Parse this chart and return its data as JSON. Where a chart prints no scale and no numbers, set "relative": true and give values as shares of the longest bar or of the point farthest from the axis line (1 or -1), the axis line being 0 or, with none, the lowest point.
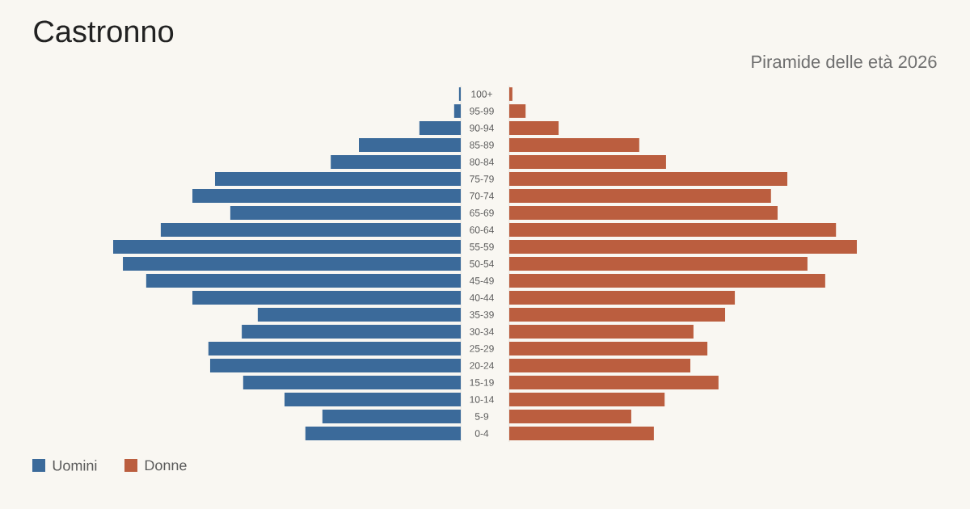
{
  "chart_data": [
    {
      "type": "bar",
      "title": "Castronno",
      "orientation": "horizontal",
      "relative": true,
      "tick_labels": "y",
      "legend": "bottom left",
      "categories": [
        "100+",
        "95-99",
        "90-94",
        "85-89",
        "80-84",
        "75-79",
        "70-74",
        "65-69",
        "60-64",
        "55-59",
        "50-54",
        "45-49",
        "40-44",
        "35-39",
        "30-34",
        "25-29",
        "20-24",
        "15-19",
        "10-14",
        "5-9",
        "0-4"
      ],
      "series": [
        {
          "name": "Uomini",
          "color": "#3b6a9a",
          "values": [
            0.005,
            0.019,
            0.119,
            0.293,
            0.374,
            0.707,
            0.772,
            0.663,
            0.863,
            1,
            0.972,
            0.905,
            0.772,
            0.584,
            0.63,
            0.726,
            0.721,
            0.626,
            0.507,
            0.398,
            0.447
          ]
        }
      ]
    },
    {
      "type": "bar",
      "subtitle": "Piramide delle età 2026",
      "orientation": "horizontal",
      "relative": true,
      "tick_labels": false,
      "legend": "bottom left",
      "categories": [
        null,
        null,
        null,
        null,
        null,
        null,
        null,
        null,
        null,
        null,
        null,
        null,
        null,
        null,
        null,
        null,
        null,
        null,
        null,
        null,
        null
      ],
      "series": [
        {
          "name": "Donne",
          "color": "#bb5e3f",
          "values": [
            0.009,
            0.047,
            0.142,
            0.374,
            0.451,
            0.8,
            0.753,
            0.772,
            0.94,
            1,
            0.858,
            0.909,
            0.649,
            0.621,
            0.53,
            0.57,
            0.521,
            0.602,
            0.447,
            0.351,
            0.416
          ]
        }
      ]
    }
  ]
}
